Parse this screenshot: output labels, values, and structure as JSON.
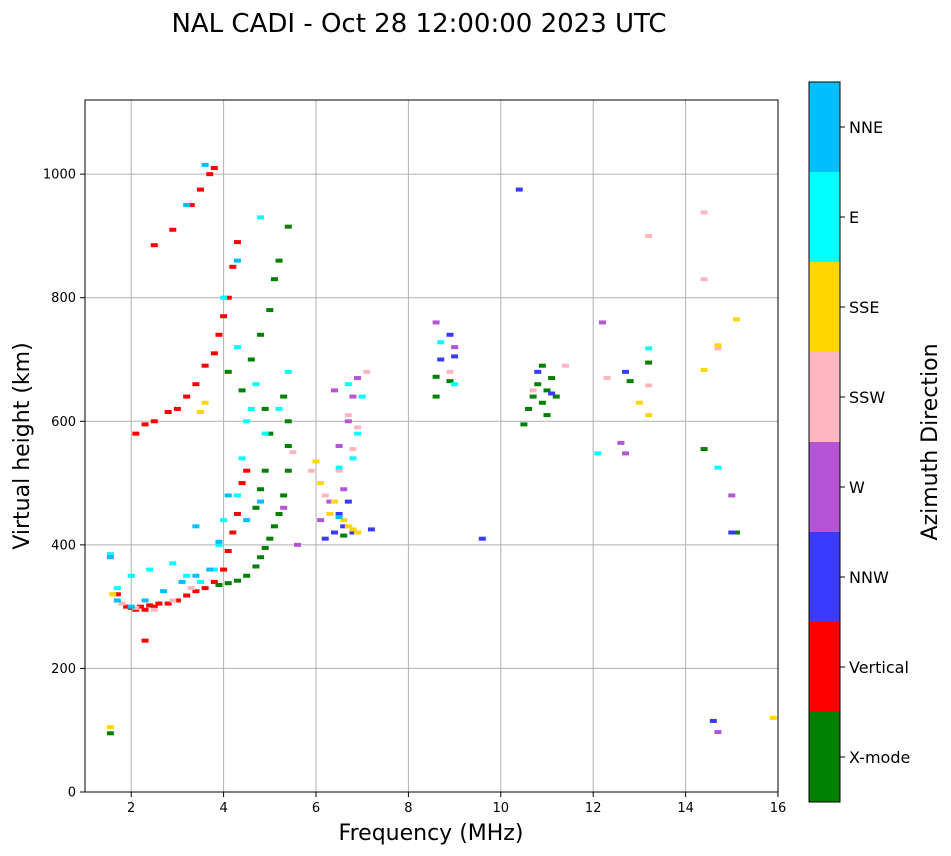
{
  "chart_data": {
    "type": "scatter",
    "title": "NAL CADI - Oct 28 12:00:00 2023 UTC",
    "xlabel": "Frequency (MHz)",
    "ylabel": "Virtual height (km)",
    "xlim": [
      1,
      16
    ],
    "ylim": [
      0,
      1120
    ],
    "xticks": [
      2,
      4,
      6,
      8,
      10,
      12,
      14,
      16
    ],
    "yticks": [
      0,
      200,
      400,
      600,
      800,
      1000
    ],
    "grid": true,
    "colorbar": {
      "title": "Azimuth Direction",
      "categories": [
        {
          "label": "X-mode",
          "color": "#008000"
        },
        {
          "label": "Vertical",
          "color": "#ff0000"
        },
        {
          "label": "NNW",
          "color": "#3a3aff"
        },
        {
          "label": "W",
          "color": "#b455d6"
        },
        {
          "label": "SSW",
          "color": "#ffb6c1"
        },
        {
          "label": "SSE",
          "color": "#ffd700"
        },
        {
          "label": "E",
          "color": "#00ffff"
        },
        {
          "label": "NNE",
          "color": "#00bfff"
        }
      ]
    },
    "series": [
      {
        "name": "Vertical",
        "color": "#ff0000",
        "points": [
          [
            1.7,
            320
          ],
          [
            1.8,
            305
          ],
          [
            1.9,
            300
          ],
          [
            2.0,
            298
          ],
          [
            2.1,
            295
          ],
          [
            2.2,
            300
          ],
          [
            2.3,
            295
          ],
          [
            2.4,
            302
          ],
          [
            2.5,
            300
          ],
          [
            2.6,
            305
          ],
          [
            2.8,
            305
          ],
          [
            3.0,
            310
          ],
          [
            3.2,
            318
          ],
          [
            3.4,
            325
          ],
          [
            3.6,
            330
          ],
          [
            3.8,
            340
          ],
          [
            4.0,
            360
          ],
          [
            4.1,
            390
          ],
          [
            4.2,
            420
          ],
          [
            4.3,
            450
          ],
          [
            4.4,
            500
          ],
          [
            4.5,
            520
          ],
          [
            2.1,
            580
          ],
          [
            2.3,
            595
          ],
          [
            2.5,
            600
          ],
          [
            2.8,
            615
          ],
          [
            3.0,
            620
          ],
          [
            3.2,
            640
          ],
          [
            3.4,
            660
          ],
          [
            3.6,
            690
          ],
          [
            3.8,
            710
          ],
          [
            3.9,
            740
          ],
          [
            4.0,
            770
          ],
          [
            4.1,
            800
          ],
          [
            4.2,
            850
          ],
          [
            4.3,
            890
          ],
          [
            2.5,
            885
          ],
          [
            2.9,
            910
          ],
          [
            3.3,
            950
          ],
          [
            3.5,
            975
          ],
          [
            3.7,
            1000
          ],
          [
            3.8,
            1010
          ],
          [
            2.3,
            245
          ]
        ]
      },
      {
        "name": "X-mode",
        "color": "#008000",
        "points": [
          [
            3.9,
            335
          ],
          [
            4.1,
            338
          ],
          [
            4.3,
            342
          ],
          [
            4.5,
            350
          ],
          [
            4.7,
            365
          ],
          [
            4.8,
            380
          ],
          [
            4.9,
            395
          ],
          [
            5.0,
            410
          ],
          [
            5.1,
            430
          ],
          [
            5.2,
            450
          ],
          [
            5.3,
            480
          ],
          [
            5.4,
            520
          ],
          [
            5.4,
            560
          ],
          [
            5.4,
            600
          ],
          [
            5.3,
            640
          ],
          [
            4.9,
            520
          ],
          [
            4.8,
            490
          ],
          [
            4.7,
            460
          ],
          [
            5.0,
            580
          ],
          [
            4.9,
            620
          ],
          [
            4.4,
            650
          ],
          [
            4.6,
            700
          ],
          [
            4.8,
            740
          ],
          [
            5.0,
            780
          ],
          [
            5.1,
            830
          ],
          [
            5.2,
            860
          ],
          [
            5.4,
            915
          ],
          [
            4.1,
            680
          ],
          [
            8.6,
            640
          ],
          [
            8.6,
            672
          ],
          [
            8.9,
            665
          ],
          [
            10.5,
            595
          ],
          [
            10.6,
            620
          ],
          [
            10.7,
            640
          ],
          [
            10.8,
            660
          ],
          [
            10.9,
            630
          ],
          [
            11.0,
            650
          ],
          [
            11.1,
            670
          ],
          [
            11.0,
            610
          ],
          [
            11.2,
            640
          ],
          [
            10.9,
            690
          ],
          [
            12.8,
            665
          ],
          [
            13.2,
            695
          ],
          [
            14.4,
            555
          ],
          [
            15.1,
            420
          ],
          [
            1.55,
            95
          ],
          [
            6.6,
            415
          ]
        ]
      },
      {
        "name": "NNW",
        "color": "#3a3aff",
        "points": [
          [
            6.2,
            410
          ],
          [
            6.4,
            420
          ],
          [
            6.6,
            430
          ],
          [
            6.8,
            420
          ],
          [
            6.5,
            450
          ],
          [
            6.7,
            470
          ],
          [
            7.2,
            425
          ],
          [
            8.7,
            700
          ],
          [
            9.0,
            705
          ],
          [
            8.9,
            740
          ],
          [
            10.4,
            975
          ],
          [
            11.1,
            645
          ],
          [
            10.8,
            680
          ],
          [
            12.7,
            680
          ],
          [
            15.0,
            420
          ],
          [
            14.6,
            115
          ],
          [
            9.6,
            410
          ]
        ]
      },
      {
        "name": "W",
        "color": "#b455d6",
        "points": [
          [
            6.1,
            440
          ],
          [
            6.3,
            470
          ],
          [
            6.6,
            490
          ],
          [
            6.5,
            560
          ],
          [
            6.7,
            600
          ],
          [
            6.8,
            640
          ],
          [
            6.4,
            650
          ],
          [
            6.9,
            670
          ],
          [
            8.6,
            760
          ],
          [
            9.0,
            720
          ],
          [
            12.2,
            760
          ],
          [
            12.6,
            565
          ],
          [
            12.7,
            548
          ],
          [
            15.0,
            480
          ],
          [
            14.7,
            97
          ],
          [
            5.6,
            400
          ],
          [
            5.3,
            460
          ]
        ]
      },
      {
        "name": "SSW",
        "color": "#ffb6c1",
        "points": [
          [
            1.8,
            305
          ],
          [
            2.1,
            298
          ],
          [
            2.5,
            295
          ],
          [
            2.9,
            310
          ],
          [
            3.3,
            330
          ],
          [
            6.5,
            520
          ],
          [
            6.8,
            555
          ],
          [
            6.9,
            590
          ],
          [
            6.7,
            610
          ],
          [
            7.1,
            680
          ],
          [
            8.9,
            680
          ],
          [
            10.7,
            650
          ],
          [
            11.4,
            690
          ],
          [
            12.3,
            670
          ],
          [
            13.2,
            658
          ],
          [
            13.2,
            900
          ],
          [
            14.4,
            938
          ],
          [
            14.7,
            718
          ],
          [
            14.4,
            830
          ],
          [
            6.2,
            480
          ],
          [
            5.5,
            550
          ],
          [
            5.9,
            520
          ]
        ]
      },
      {
        "name": "SSE",
        "color": "#ffd700",
        "points": [
          [
            1.55,
            105
          ],
          [
            1.6,
            320
          ],
          [
            3.5,
            615
          ],
          [
            3.6,
            630
          ],
          [
            6.1,
            500
          ],
          [
            6.3,
            450
          ],
          [
            6.4,
            470
          ],
          [
            6.6,
            440
          ],
          [
            6.7,
            430
          ],
          [
            6.8,
            425
          ],
          [
            6.9,
            420
          ],
          [
            13.0,
            630
          ],
          [
            13.2,
            610
          ],
          [
            14.7,
            723
          ],
          [
            15.1,
            765
          ],
          [
            15.9,
            120
          ],
          [
            14.4,
            683
          ],
          [
            6.0,
            535
          ]
        ]
      },
      {
        "name": "E",
        "color": "#00ffff",
        "points": [
          [
            1.7,
            330
          ],
          [
            2.0,
            350
          ],
          [
            2.4,
            360
          ],
          [
            2.9,
            370
          ],
          [
            3.2,
            350
          ],
          [
            3.5,
            340
          ],
          [
            3.8,
            360
          ],
          [
            3.9,
            400
          ],
          [
            4.0,
            440
          ],
          [
            4.3,
            480
          ],
          [
            4.4,
            540
          ],
          [
            4.5,
            600
          ],
          [
            4.6,
            620
          ],
          [
            4.7,
            660
          ],
          [
            4.3,
            720
          ],
          [
            4.0,
            800
          ],
          [
            4.9,
            580
          ],
          [
            5.2,
            620
          ],
          [
            5.4,
            680
          ],
          [
            6.5,
            525
          ],
          [
            6.8,
            540
          ],
          [
            6.9,
            580
          ],
          [
            7.0,
            640
          ],
          [
            6.7,
            660
          ],
          [
            8.7,
            728
          ],
          [
            9.0,
            660
          ],
          [
            13.2,
            718
          ],
          [
            14.7,
            525
          ],
          [
            12.1,
            548
          ],
          [
            4.8,
            930
          ],
          [
            1.55,
            385
          ]
        ]
      },
      {
        "name": "NNE",
        "color": "#00bfff",
        "points": [
          [
            1.55,
            380
          ],
          [
            1.7,
            310
          ],
          [
            2.0,
            300
          ],
          [
            2.3,
            310
          ],
          [
            2.7,
            325
          ],
          [
            3.1,
            340
          ],
          [
            3.4,
            350
          ],
          [
            3.7,
            360
          ],
          [
            3.9,
            405
          ],
          [
            4.1,
            480
          ],
          [
            4.5,
            440
          ],
          [
            4.8,
            470
          ],
          [
            3.2,
            950
          ],
          [
            3.6,
            1015
          ],
          [
            3.4,
            430
          ],
          [
            4.3,
            860
          ],
          [
            6.5,
            445
          ]
        ]
      }
    ]
  }
}
